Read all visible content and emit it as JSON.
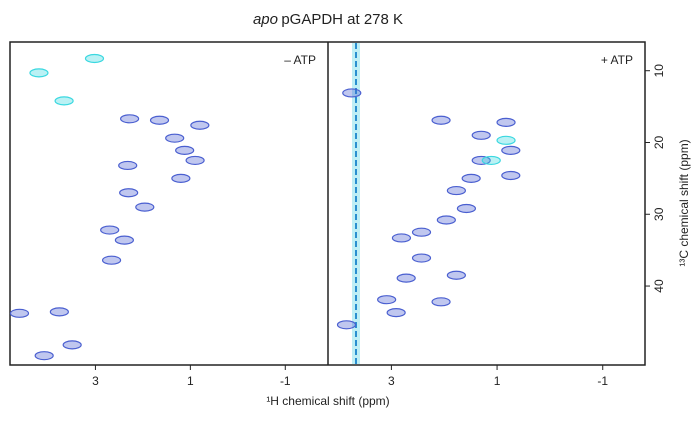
{
  "title_italic": "apo",
  "title": "pGAPDH at 278 K",
  "xlabel": "¹H chemical shift (ppm)",
  "ylabel": "¹³C chemical shift (ppm)",
  "chart_data": [
    {
      "type": "scatter",
      "label": "– ATP",
      "xlim": [
        4.8,
        -1.9
      ],
      "ylim": [
        6,
        51
      ],
      "xticks": [
        3,
        1,
        -1
      ],
      "series": [
        {
          "color": "#4a5fd0",
          "x": [
            2.28,
            1.65,
            1.33,
            1.12,
            0.8,
            0.9,
            1.2,
            2.32,
            1.96,
            2.3,
            2.7,
            2.39,
            2.66,
            3.76,
            4.6,
            4.08,
            3.49
          ],
          "y": [
            16.7,
            16.9,
            19.4,
            21.1,
            17.6,
            22.5,
            25,
            23.2,
            29,
            27,
            32.2,
            33.6,
            36.4,
            43.6,
            43.8,
            49.7,
            48.2
          ]
        },
        {
          "color": "#3ad8e0",
          "x": [
            4.19,
            3.66,
            3.02
          ],
          "y": [
            10.3,
            14.2,
            8.3
          ]
        }
      ]
    },
    {
      "type": "scatter",
      "label": "+ ATP",
      "xlim": [
        4.2,
        -1.8
      ],
      "ylim": [
        6,
        51
      ],
      "xticks": [
        3,
        1,
        -1
      ],
      "yticks": [
        10,
        20,
        30,
        40
      ],
      "series": [
        {
          "color": "#4a5fd0",
          "x": [
            2.06,
            0.83,
            1.3,
            0.74,
            1.3,
            0.74,
            1.49,
            1.77,
            1.58,
            1.96,
            2.43,
            2.81,
            2.43,
            2.72,
            1.77,
            3.09,
            2.91,
            2.06,
            3.85,
            3.75
          ],
          "y": [
            16.9,
            17.2,
            19,
            21.1,
            22.5,
            24.6,
            25,
            26.7,
            29.2,
            30.8,
            32.5,
            33.3,
            36.1,
            38.9,
            38.5,
            41.9,
            43.7,
            42.2,
            45.4,
            13.1
          ]
        },
        {
          "color": "#3ad8e0",
          "x": [
            0.83,
            1.11
          ],
          "y": [
            19.7,
            22.5
          ]
        }
      ]
    }
  ]
}
